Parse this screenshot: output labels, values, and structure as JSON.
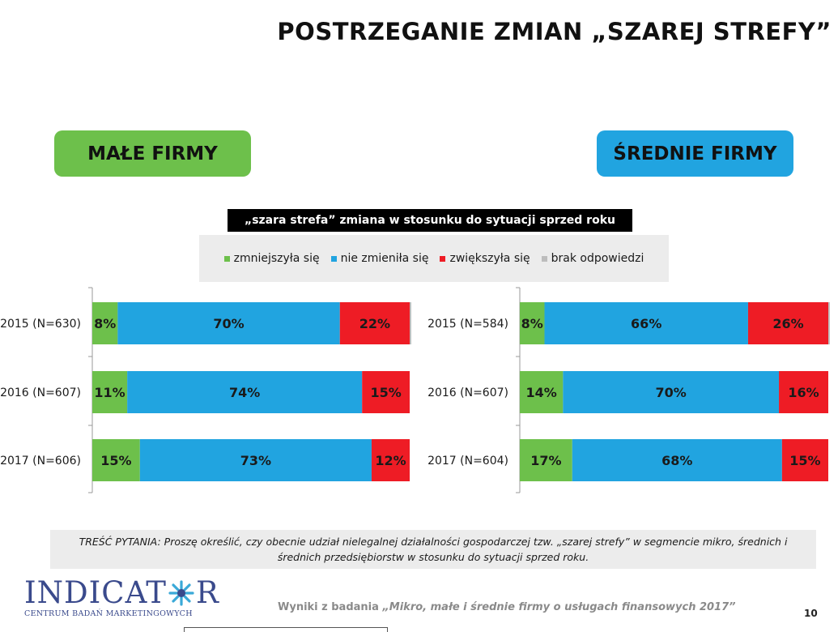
{
  "title": "POSTRZEGANIE ZMIAN „SZAREJ STREFY”",
  "segments": {
    "small": "MAŁE FIRMY",
    "medium": "ŚREDNIE FIRMY"
  },
  "question_label": "„szara strefa” zmiana w stosunku do sytuacji sprzed roku",
  "legend": [
    {
      "label": "zmniejszyła się",
      "color": "#6dc04b"
    },
    {
      "label": "nie zmieniła się",
      "color": "#21a4e0"
    },
    {
      "label": "zwiększyła się",
      "color": "#ee1c25"
    },
    {
      "label": "brak odpowiedzi",
      "color": "#bdbdbd"
    }
  ],
  "chart_data": [
    {
      "type": "bar",
      "stacked": true,
      "orientation": "horizontal",
      "segment": "MAŁE FIRMY",
      "categories": [
        "2015 (N=630)",
        "2016 (N=607)",
        "2017 (N=606)"
      ],
      "series": [
        {
          "name": "zmniejszyła się",
          "values": [
            8,
            11,
            15
          ]
        },
        {
          "name": "nie zmieniła się",
          "values": [
            70,
            74,
            73
          ]
        },
        {
          "name": "zwiększyła się",
          "values": [
            22,
            15,
            12
          ]
        },
        {
          "name": "brak odpowiedzi",
          "values": [
            0.5,
            0,
            0
          ]
        }
      ],
      "xlim": [
        0,
        100
      ]
    },
    {
      "type": "bar",
      "stacked": true,
      "orientation": "horizontal",
      "segment": "ŚREDNIE FIRMY",
      "categories": [
        "2015 (N=584)",
        "2016 (N=607)",
        "2017 (N=604)"
      ],
      "series": [
        {
          "name": "zmniejszyła się",
          "values": [
            8,
            14,
            17
          ]
        },
        {
          "name": "nie zmieniła się",
          "values": [
            66,
            70,
            68
          ]
        },
        {
          "name": "zwiększyła się",
          "values": [
            26,
            16,
            15
          ]
        },
        {
          "name": "brak odpowiedzi",
          "values": [
            0.5,
            0,
            0
          ]
        }
      ],
      "xlim": [
        0,
        100
      ]
    }
  ],
  "footnote": "TREŚĆ PYTANIA: Proszę określić, czy obecnie udział nielegalnej działalności gospodarczej tzw. „szarej strefy” w segmencie mikro, średnich i średnich przedsiębiorstw w stosunku do sytuacji sprzed roku.",
  "logo": {
    "part1": "INDICAT",
    "part2": "R",
    "sub": "CENTRUM BADAŃ MARKETINGOWYCH"
  },
  "source": {
    "prefix": "Wyniki z badania ",
    "study": "„Mikro, małe i średnie firmy o usługach finansowych 2017”"
  },
  "page_number": "10"
}
